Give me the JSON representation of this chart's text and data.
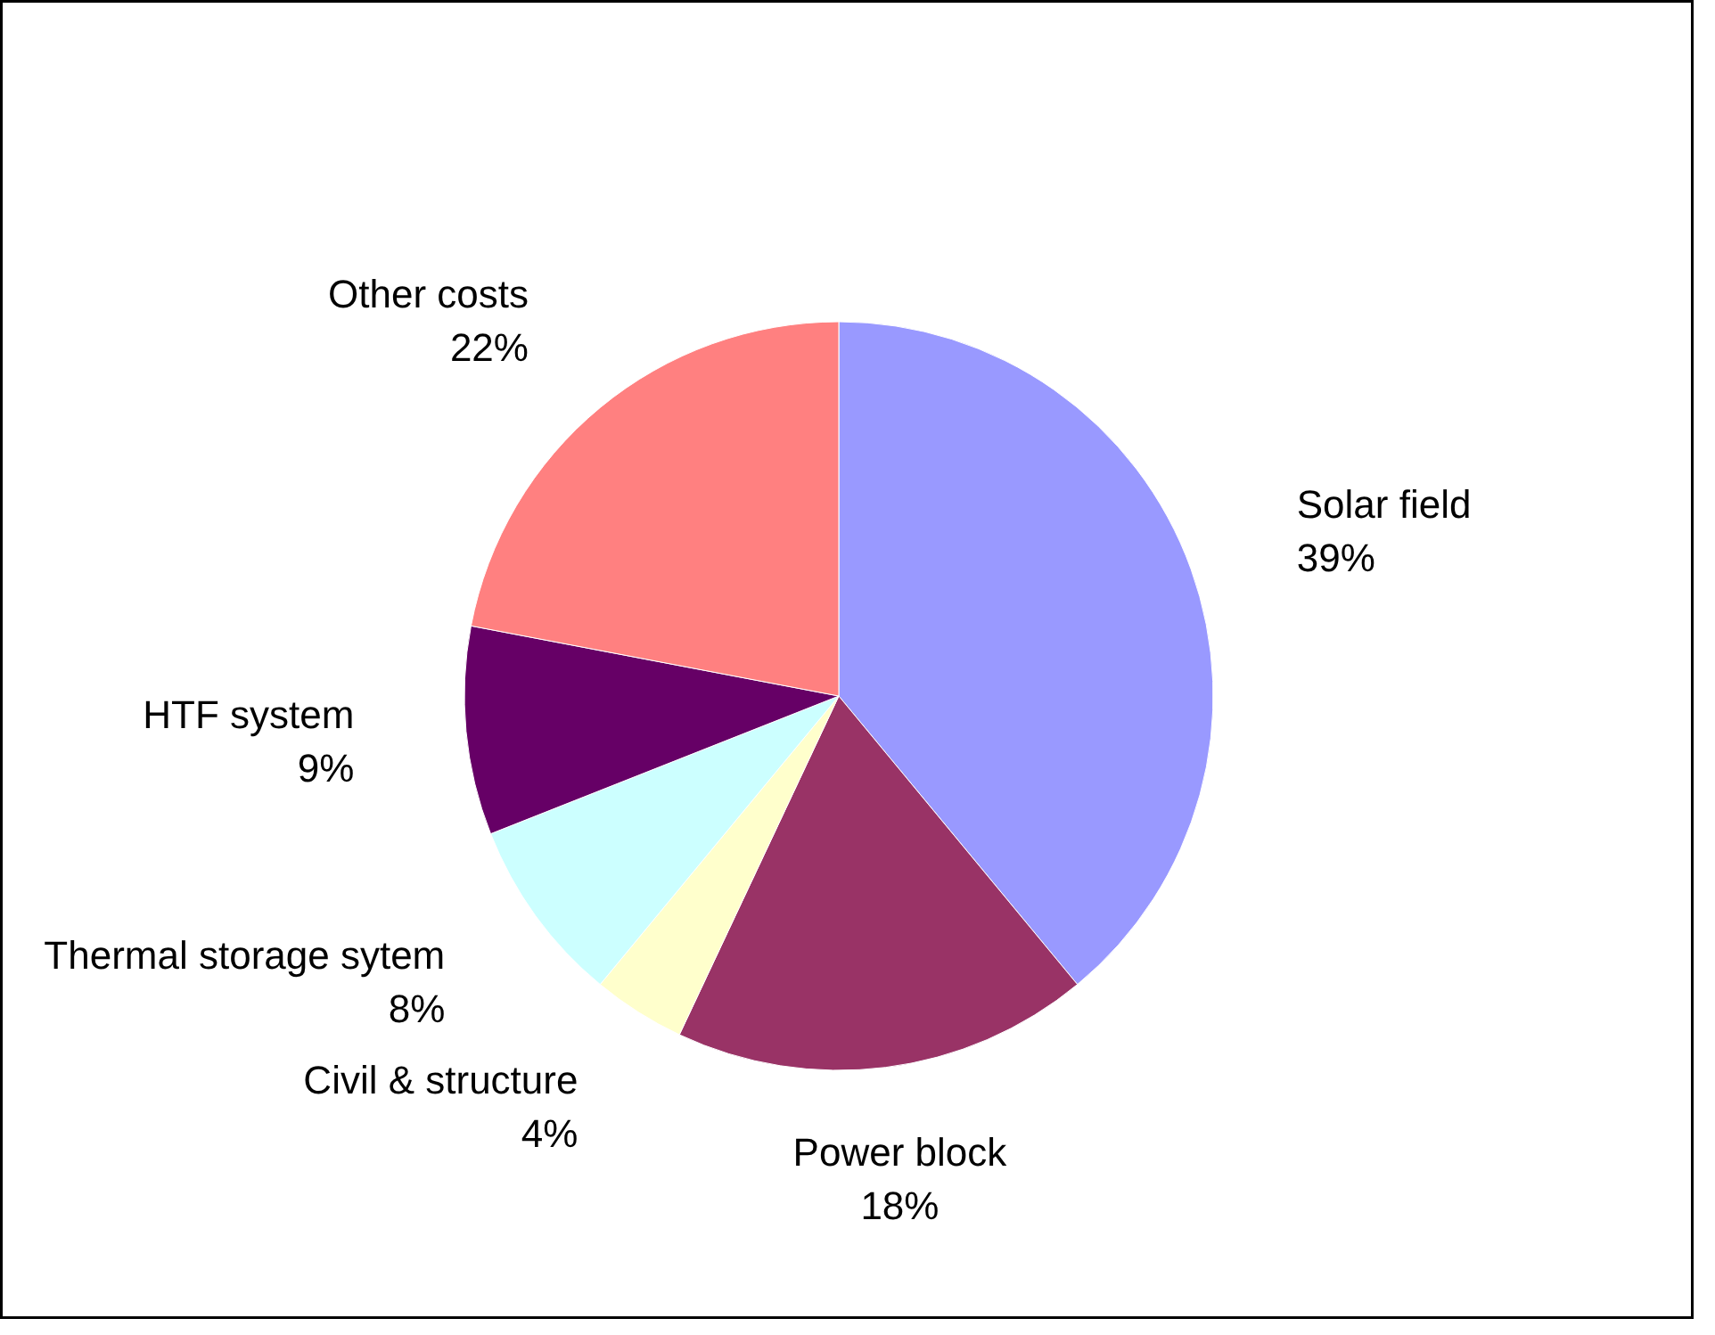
{
  "chart_data": {
    "type": "pie",
    "categories": [
      "Solar field",
      "Power block",
      "Civil & structure",
      "Thermal storage sytem",
      "HTF system",
      "Other costs"
    ],
    "values": [
      39,
      18,
      4,
      8,
      9,
      22
    ],
    "colors": [
      "#9999ff",
      "#993366",
      "#ffffcc",
      "#ccffff",
      "#660066",
      "#ff8080"
    ],
    "value_labels": [
      "39%",
      "18%",
      "4%",
      "8%",
      "9%",
      "22%"
    ]
  }
}
